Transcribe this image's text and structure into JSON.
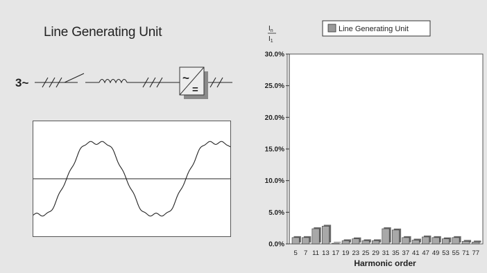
{
  "left_panel": {
    "title": "Line Generating Unit",
    "phase_label": "3~",
    "converter_symbol_top": "~",
    "converter_symbol_bottom": "="
  },
  "chart_data": {
    "type": "bar",
    "title": "",
    "ylabel_numerator": "I",
    "ylabel_numerator_sub": "n",
    "ylabel_denominator": "I",
    "ylabel_denominator_sub": "1",
    "xlabel": "Harmonic order",
    "ylim": [
      0,
      30
    ],
    "yticks": [
      "0.0%",
      "5.0%",
      "10.0%",
      "15.0%",
      "20.0%",
      "25.0%",
      "30.0%"
    ],
    "grid": false,
    "legend_position": "top",
    "categories": [
      "5",
      "7",
      "11",
      "13",
      "17",
      "19",
      "23",
      "25",
      "29",
      "31",
      "35",
      "37",
      "41",
      "47",
      "49",
      "53",
      "55",
      "71",
      "77"
    ],
    "series": [
      {
        "name": "Line Generating Unit",
        "values": [
          1.0,
          1.0,
          2.4,
          2.8,
          0.1,
          0.5,
          0.8,
          0.5,
          0.5,
          2.4,
          2.2,
          1.0,
          0.6,
          1.1,
          1.0,
          0.8,
          1.0,
          0.4,
          0.3
        ]
      }
    ]
  }
}
